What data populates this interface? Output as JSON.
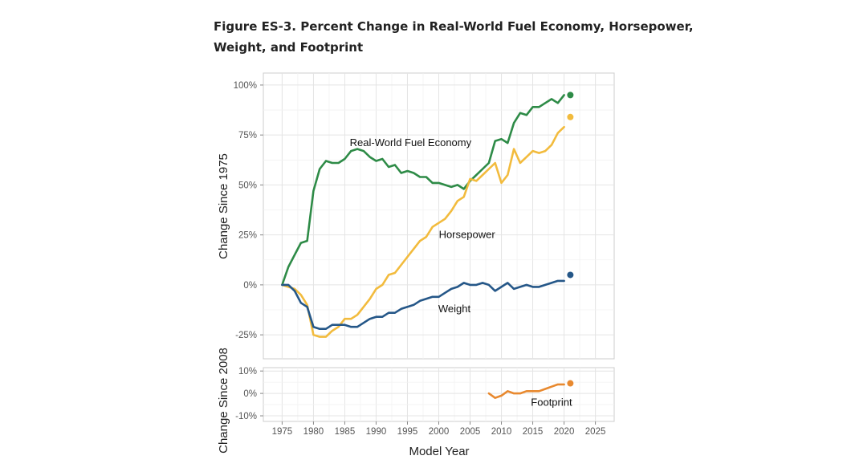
{
  "figure": {
    "title": "Figure ES-3. Percent Change in Real-World Fuel Economy, Horsepower, Weight, and Footprint"
  },
  "chart_data": [
    {
      "type": "line",
      "xlabel": "Model Year",
      "ylabel": "Change Since 1975",
      "xlim": [
        1972,
        2028
      ],
      "ylim": [
        -37,
        106
      ],
      "xticks": [
        "1975",
        "1980",
        "1985",
        "1990",
        "1995",
        "2000",
        "2005",
        "2010",
        "2015",
        "2020",
        "2025"
      ],
      "yticks": [
        {
          "value": 100,
          "label": "100%"
        },
        {
          "value": 75,
          "label": "75%"
        },
        {
          "value": 50,
          "label": "50%"
        },
        {
          "value": 25,
          "label": "25%"
        },
        {
          "value": 0,
          "label": "0%"
        },
        {
          "value": -25,
          "label": "-25%"
        }
      ],
      "series": [
        {
          "name": "Real-World Fuel Economy",
          "color": "#2e8b47",
          "x": [
            1975,
            1976,
            1977,
            1978,
            1979,
            1980,
            1981,
            1982,
            1983,
            1984,
            1985,
            1986,
            1987,
            1988,
            1989,
            1990,
            1991,
            1992,
            1993,
            1994,
            1995,
            1996,
            1997,
            1998,
            1999,
            2000,
            2001,
            2002,
            2003,
            2004,
            2005,
            2006,
            2007,
            2008,
            2009,
            2010,
            2011,
            2012,
            2013,
            2014,
            2015,
            2016,
            2017,
            2018,
            2019,
            2020
          ],
          "values": [
            0,
            9,
            15,
            21,
            22,
            47,
            58,
            62,
            61,
            61,
            63,
            67,
            68,
            67,
            64,
            62,
            63,
            59,
            60,
            56,
            57,
            56,
            54,
            54,
            51,
            51,
            50,
            49,
            50,
            48,
            52,
            55,
            58,
            61,
            72,
            73,
            71,
            81,
            86,
            85,
            89,
            89,
            91,
            93,
            91,
            95
          ],
          "marker": {
            "x": 2021,
            "value": 95
          }
        },
        {
          "name": "Horsepower",
          "color": "#f2bb3d",
          "x": [
            1975,
            1976,
            1977,
            1978,
            1979,
            1980,
            1981,
            1982,
            1983,
            1984,
            1985,
            1986,
            1987,
            1988,
            1989,
            1990,
            1991,
            1992,
            1993,
            1994,
            1995,
            1996,
            1997,
            1998,
            1999,
            2000,
            2001,
            2002,
            2003,
            2004,
            2005,
            2006,
            2007,
            2008,
            2009,
            2010,
            2011,
            2012,
            2013,
            2014,
            2015,
            2016,
            2017,
            2018,
            2019,
            2020
          ],
          "values": [
            0,
            -1,
            -2,
            -5,
            -10,
            -25,
            -26,
            -26,
            -23,
            -21,
            -17,
            -17,
            -15,
            -11,
            -7,
            -2,
            0,
            5,
            6,
            10,
            14,
            18,
            22,
            24,
            29,
            31,
            33,
            37,
            42,
            44,
            53,
            52,
            55,
            58,
            61,
            51,
            55,
            68,
            61,
            64,
            67,
            66,
            67,
            70,
            76,
            79
          ],
          "marker": {
            "x": 2021,
            "value": 84
          }
        },
        {
          "name": "Weight",
          "color": "#255788",
          "x": [
            1975,
            1976,
            1977,
            1978,
            1979,
            1980,
            1981,
            1982,
            1983,
            1984,
            1985,
            1986,
            1987,
            1988,
            1989,
            1990,
            1991,
            1992,
            1993,
            1994,
            1995,
            1996,
            1997,
            1998,
            1999,
            2000,
            2001,
            2002,
            2003,
            2004,
            2005,
            2006,
            2007,
            2008,
            2009,
            2010,
            2011,
            2012,
            2013,
            2014,
            2015,
            2016,
            2017,
            2018,
            2019,
            2020
          ],
          "values": [
            0,
            0,
            -3,
            -9,
            -11,
            -21,
            -22,
            -22,
            -20,
            -20,
            -20,
            -21,
            -21,
            -19,
            -17,
            -16,
            -16,
            -14,
            -14,
            -12,
            -11,
            -10,
            -8,
            -7,
            -6,
            -6,
            -4,
            -2,
            -1,
            1,
            0,
            0,
            1,
            0,
            -3,
            -1,
            1,
            -2,
            -1,
            0,
            -1,
            -1,
            0,
            1,
            2,
            2
          ],
          "marker": {
            "x": 2021,
            "value": 5
          }
        }
      ],
      "annotations": [
        {
          "text": "Real-World Fuel Economy",
          "x": 1995.5,
          "y": 71
        },
        {
          "text": "Horsepower",
          "x": 2004.5,
          "y": 25
        },
        {
          "text": "Weight",
          "x": 2002.5,
          "y": -12
        }
      ],
      "grid": true
    },
    {
      "type": "line",
      "ylabel": "Change Since 2008",
      "xlim": [
        1972,
        2028
      ],
      "ylim": [
        -12.5,
        11.5
      ],
      "yticks": [
        {
          "value": 10,
          "label": "10%"
        },
        {
          "value": 0,
          "label": "0%"
        },
        {
          "value": -10,
          "label": "-10%"
        }
      ],
      "series": [
        {
          "name": "Footprint",
          "color": "#e8892f",
          "x": [
            2008,
            2009,
            2010,
            2011,
            2012,
            2013,
            2014,
            2015,
            2016,
            2017,
            2018,
            2019,
            2020
          ],
          "values": [
            0,
            -2,
            -1,
            1,
            0,
            0,
            1,
            1,
            1,
            2,
            3,
            4,
            4
          ],
          "marker": {
            "x": 2021,
            "value": 4.5
          }
        }
      ],
      "annotations": [
        {
          "text": "Footprint",
          "x": 2018,
          "y": -4
        }
      ],
      "grid": true
    }
  ]
}
